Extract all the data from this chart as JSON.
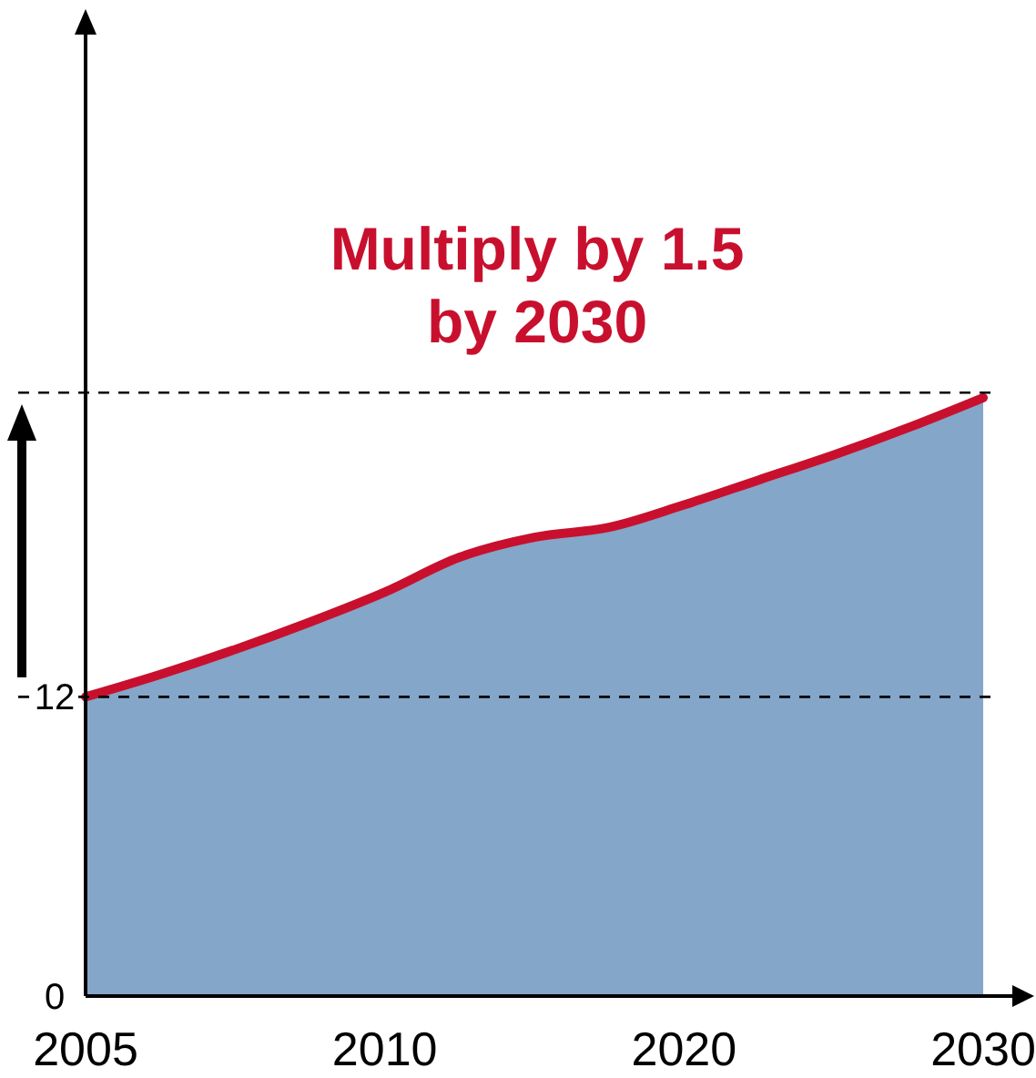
{
  "chart_data": {
    "type": "area",
    "title": "Multiply by 1.5\nby 2030",
    "categories": [
      "2005",
      null,
      null,
      null,
      "2010",
      null,
      null,
      null,
      "2020",
      null,
      null,
      null,
      "2030"
    ],
    "series": [
      {
        "color": "#84a6c8",
        "values": [
          12.0,
          12.9,
          13.9,
          15.0,
          16.2,
          17.6,
          18.4,
          18.8,
          19.7,
          20.7,
          21.7,
          22.8,
          24.0
        ]
      },
      {
        "type": "line",
        "color": "#c8102e",
        "values": [
          12.0,
          12.9,
          13.9,
          15.0,
          16.2,
          17.6,
          18.4,
          18.8,
          19.7,
          20.7,
          21.7,
          22.8,
          24.0
        ]
      }
    ],
    "ylim": [
      0,
      39
    ],
    "yticks": [
      0,
      12
    ],
    "ref_lines": [
      {
        "axis": "y",
        "value": 12,
        "color": "#000000",
        "line_style": "dashed"
      },
      {
        "axis": "y",
        "value": 24.2,
        "color": "#000000",
        "line_style": "dashed"
      }
    ],
    "grid": false
  }
}
